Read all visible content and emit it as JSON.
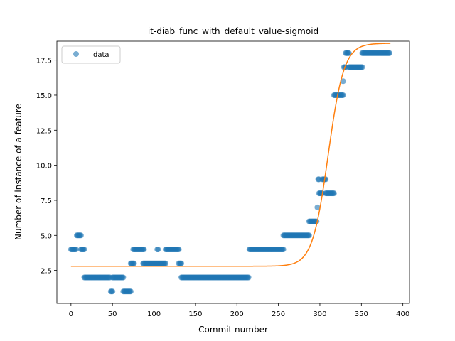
{
  "chart_data": {
    "type": "scatter",
    "title": "it-diab_func_with_default_value-sigmoid",
    "xlabel": "Commit number",
    "ylabel": "Number of instance of a feature",
    "xlim": [
      -17,
      408
    ],
    "ylim": [
      0.15,
      18.85
    ],
    "x_ticks": [
      0,
      50,
      100,
      150,
      200,
      250,
      300,
      350,
      400
    ],
    "x_tick_labels": [
      "0",
      "50",
      "100",
      "150",
      "200",
      "250",
      "300",
      "350",
      "400"
    ],
    "y_ticks": [
      2.5,
      5.0,
      7.5,
      10.0,
      12.5,
      15.0,
      17.5
    ],
    "y_tick_labels": [
      "2.5",
      "5.0",
      "7.5",
      "10.0",
      "12.5",
      "15.0",
      "17.5"
    ],
    "grid": false,
    "legend": {
      "position": "top-left",
      "entries": [
        "data"
      ]
    },
    "colors": {
      "data": "#1f77b4",
      "fit": "#ff7f0e"
    },
    "series": [
      {
        "name": "data",
        "kind": "scatter",
        "segments": [
          {
            "x_start": 0,
            "x_end": 6,
            "y": 4
          },
          {
            "x_start": 7,
            "x_end": 12,
            "y": 5
          },
          {
            "x_start": 12,
            "x_end": 16,
            "y": 4
          },
          {
            "x_start": 16,
            "x_end": 47,
            "y": 2
          },
          {
            "x_start": 48,
            "x_end": 50,
            "y": 1
          },
          {
            "x_start": 50,
            "x_end": 63,
            "y": 2
          },
          {
            "x_start": 63,
            "x_end": 72,
            "y": 1
          },
          {
            "x_start": 72,
            "x_end": 76,
            "y": 3
          },
          {
            "x_start": 75,
            "x_end": 88,
            "y": 4
          },
          {
            "x_start": 87,
            "x_end": 104,
            "y": 3
          },
          {
            "x_start": 104,
            "x_end": 105,
            "y": 4
          },
          {
            "x_start": 105,
            "x_end": 114,
            "y": 3
          },
          {
            "x_start": 114,
            "x_end": 130,
            "y": 4
          },
          {
            "x_start": 130,
            "x_end": 133,
            "y": 3
          },
          {
            "x_start": 133,
            "x_end": 214,
            "y": 2
          },
          {
            "x_start": 215,
            "x_end": 256,
            "y": 4
          },
          {
            "x_start": 256,
            "x_end": 287,
            "y": 5
          },
          {
            "x_start": 287,
            "x_end": 296,
            "y": 6
          },
          {
            "x_start": 297,
            "x_end": 297,
            "y": 7
          },
          {
            "x_start": 298,
            "x_end": 299,
            "y": 9
          },
          {
            "x_start": 299,
            "x_end": 303,
            "y": 8
          },
          {
            "x_start": 303,
            "x_end": 307,
            "y": 9
          },
          {
            "x_start": 307,
            "x_end": 317,
            "y": 8
          },
          {
            "x_start": 317,
            "x_end": 328,
            "y": 15
          },
          {
            "x_start": 328,
            "x_end": 328,
            "y": 16
          },
          {
            "x_start": 329,
            "x_end": 331,
            "y": 17
          },
          {
            "x_start": 331,
            "x_end": 335,
            "y": 18
          },
          {
            "x_start": 335,
            "x_end": 351,
            "y": 17
          },
          {
            "x_start": 351,
            "x_end": 384,
            "y": 18
          }
        ]
      },
      {
        "kind": "line",
        "function": "sigmoid",
        "params": {
          "lower": 2.8,
          "upper": 18.7,
          "midpoint": 310,
          "rate": 0.105
        },
        "x_range": [
          0,
          385
        ]
      }
    ]
  }
}
